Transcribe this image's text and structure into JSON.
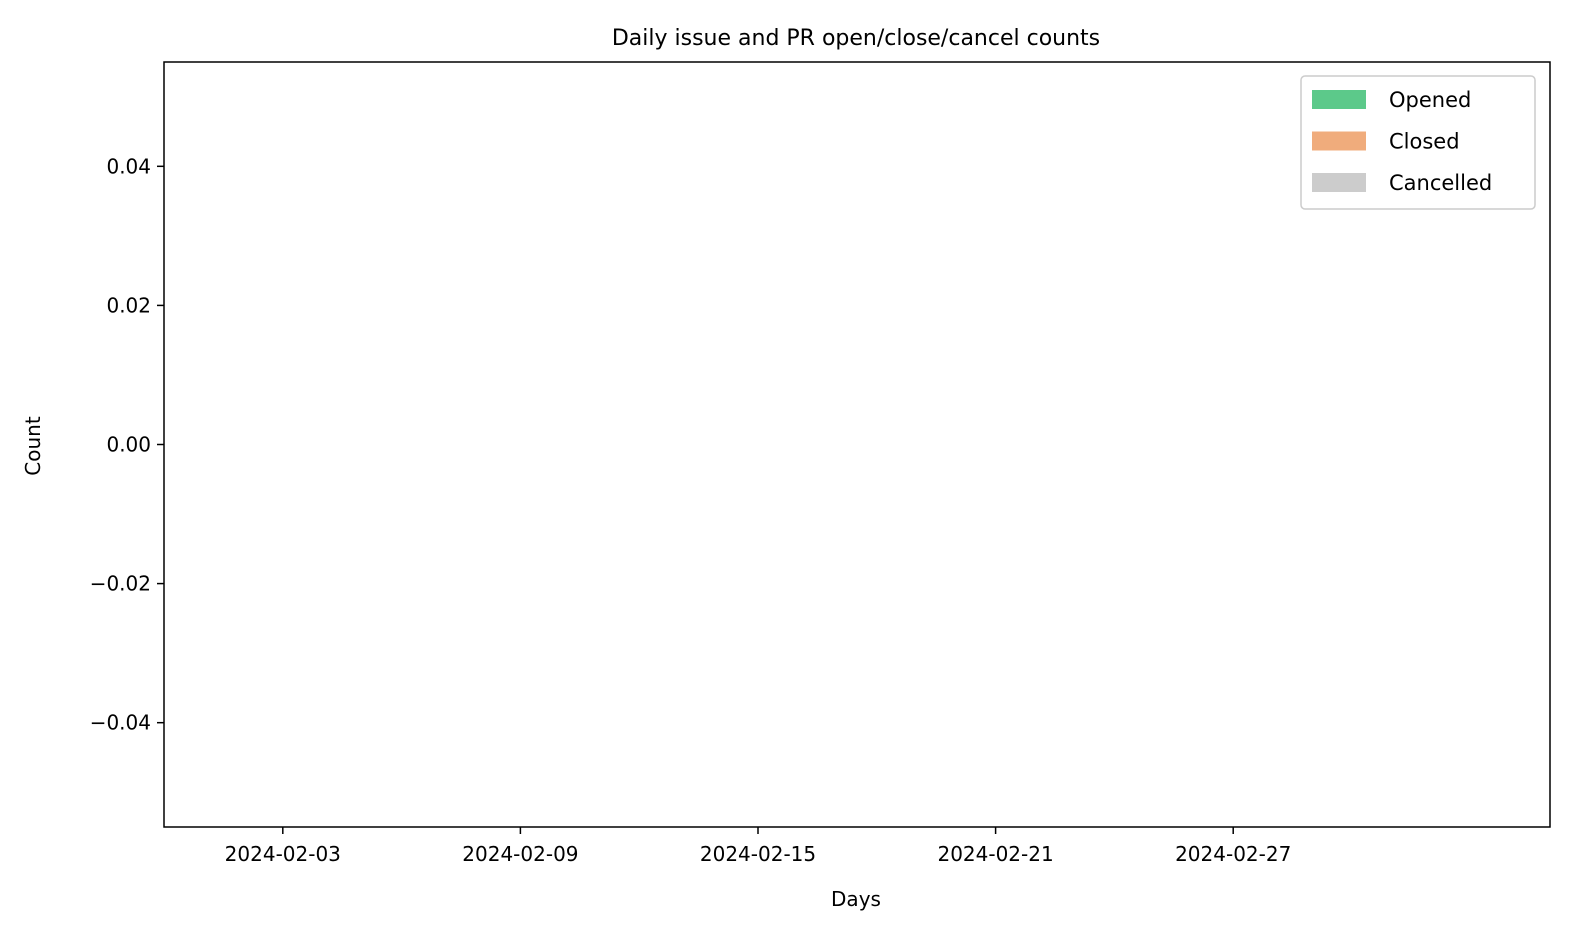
{
  "chart_data": {
    "type": "bar",
    "title": "Daily issue and PR open/close/cancel counts",
    "xlabel": "Days",
    "ylabel": "Count",
    "x_axis_type": "date",
    "xlim": [
      "2024-01-31",
      "2024-03-06"
    ],
    "ylim": [
      -0.055,
      0.055
    ],
    "x_ticks": [
      "2024-02-03",
      "2024-02-09",
      "2024-02-15",
      "2024-02-21",
      "2024-02-27"
    ],
    "y_ticks": [
      {
        "value": 0.04,
        "label": "0.04"
      },
      {
        "value": 0.02,
        "label": "0.02"
      },
      {
        "value": 0.0,
        "label": "0.00"
      },
      {
        "value": -0.02,
        "label": "−0.02"
      },
      {
        "value": -0.04,
        "label": "−0.04"
      }
    ],
    "grid": false,
    "legend_position": "top-right",
    "series": [
      {
        "name": "Opened",
        "color": "#5cc98a",
        "values": []
      },
      {
        "name": "Closed",
        "color": "#f0ac7c",
        "values": []
      },
      {
        "name": "Cancelled",
        "color": "#cccccc",
        "values": []
      }
    ]
  }
}
